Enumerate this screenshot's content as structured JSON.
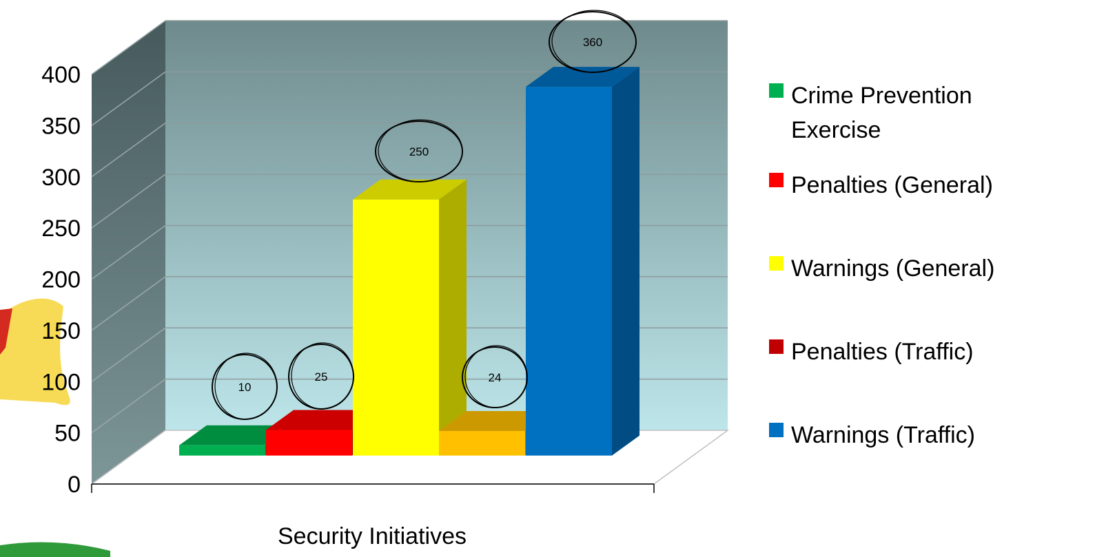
{
  "chart_data": {
    "type": "bar",
    "title": "",
    "xlabel": "Security Initiatives",
    "ylabel": "",
    "ylim": [
      0,
      400
    ],
    "yticks": [
      "0",
      "50",
      "100",
      "150",
      "200",
      "250",
      "300",
      "350",
      "400"
    ],
    "grid": true,
    "legend_position": "right",
    "categories": [
      "Security Initiatives"
    ],
    "series": [
      {
        "name": "Crime Prevention Exercise",
        "value": 10,
        "label": "10",
        "color": "#00B050"
      },
      {
        "name": "Penalties (General)",
        "value": 25,
        "label": "25",
        "color": "#FF0000"
      },
      {
        "name": "Warnings (General)",
        "value": 250,
        "label": "250",
        "color": "#FFFF00"
      },
      {
        "name": "Penalties (Traffic)",
        "value": 24,
        "label": "24",
        "color": "#C00000",
        "bar_color": "#FFC000"
      },
      {
        "name": "Warnings (Traffic)",
        "value": 360,
        "label": "360",
        "color": "#0070C0"
      }
    ]
  }
}
